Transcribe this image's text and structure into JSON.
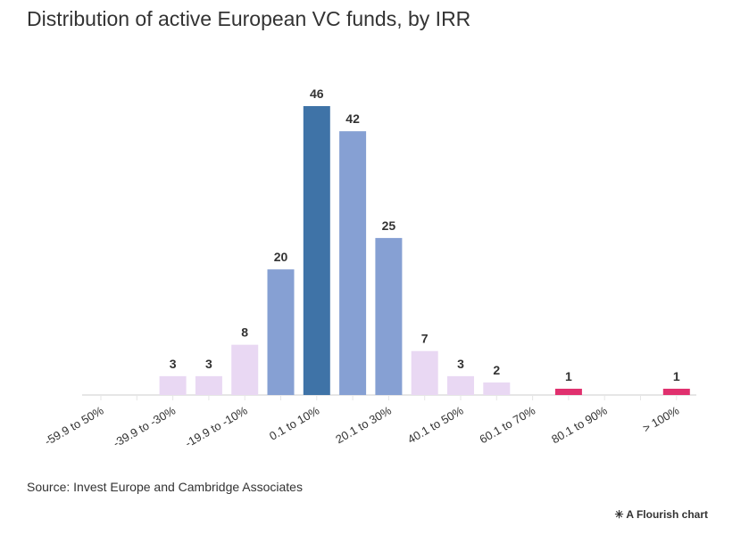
{
  "title": "Distribution of active European VC funds, by IRR",
  "source": "Source: Invest Europe and Cambridge Associates",
  "credit": "A Flourish chart",
  "credit_icon": "asterisk-icon",
  "chart_data": {
    "type": "bar",
    "title": "Distribution of active European VC funds, by IRR",
    "xlabel": "",
    "ylabel": "",
    "categories": [
      "-59.9 to 50%",
      "",
      "-39.9 to -30%",
      "",
      "-19.9 to -10%",
      "",
      "0.1 to 10%",
      "",
      "20.1 to 30%",
      "",
      "40.1 to 50%",
      "",
      "60.1 to 70%",
      "",
      "80.1 to 90%",
      "",
      "> 100%"
    ],
    "values": [
      0,
      0,
      3,
      3,
      8,
      20,
      46,
      42,
      25,
      7,
      3,
      2,
      0,
      1,
      0,
      0,
      1
    ],
    "ylim": [
      0,
      46
    ],
    "grid": false,
    "legend": "none",
    "colors": [
      "#ffffff",
      "#ffffff",
      "#e9d8f3",
      "#e9d8f3",
      "#e9d8f3",
      "#86a0d3",
      "#3f73a7",
      "#86a0d3",
      "#86a0d3",
      "#e9d8f3",
      "#e9d8f3",
      "#e9d8f3",
      "#ffffff",
      "#e0306e",
      "#ffffff",
      "#ffffff",
      "#e0306e"
    ],
    "axis_color": "#e6e6e6"
  }
}
